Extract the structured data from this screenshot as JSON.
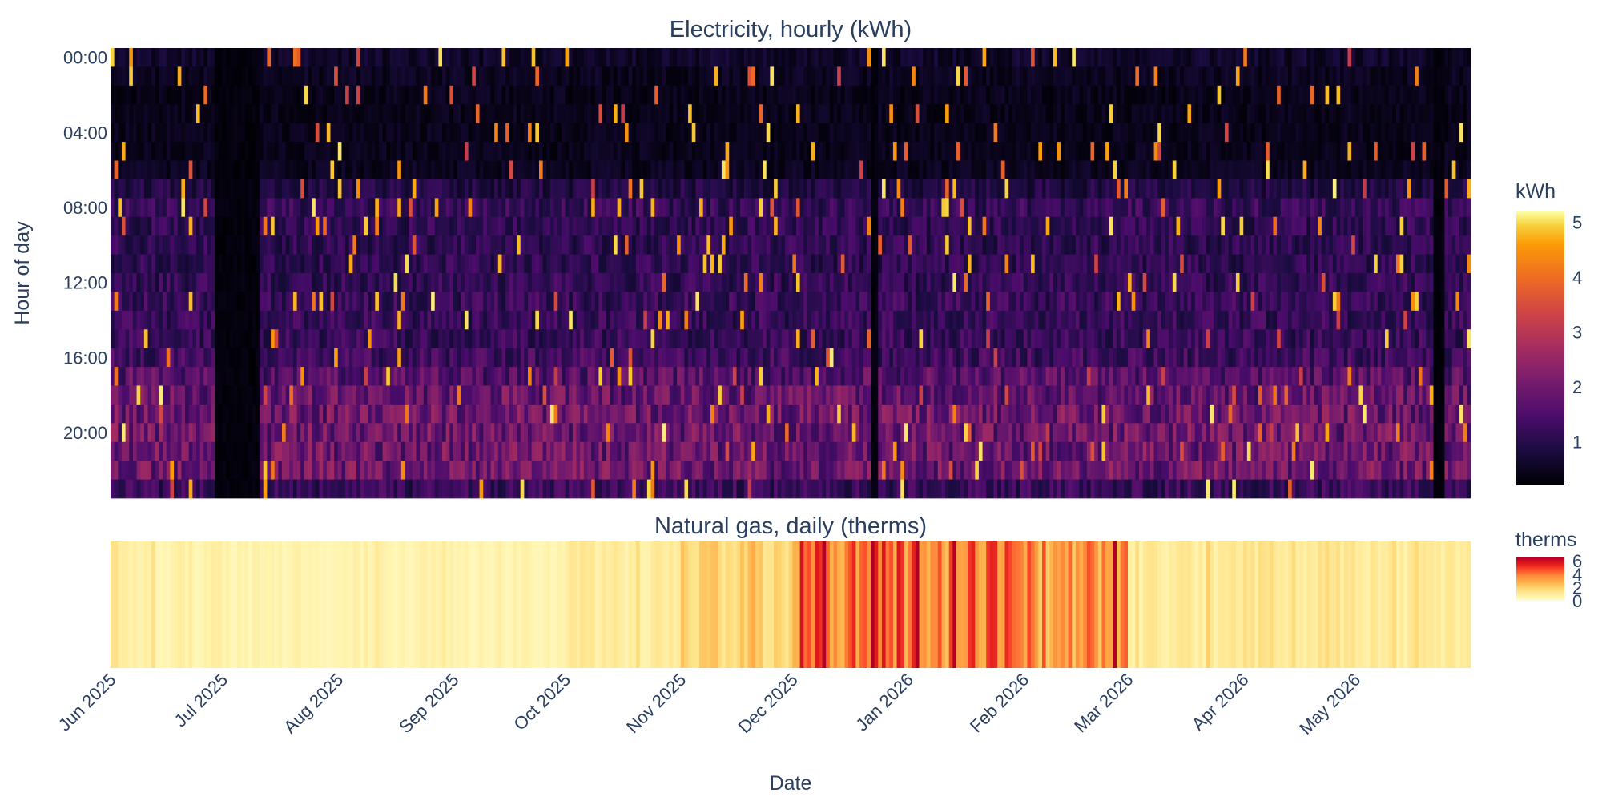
{
  "chart_data": [
    {
      "type": "heatmap",
      "title": "Electricity, hourly (kWh)",
      "ylabel": "Hour of day",
      "xlabel": "",
      "x_range": [
        "2025-06-01",
        "2026-06-01"
      ],
      "y_ticks": [
        "00:00",
        "04:00",
        "08:00",
        "12:00",
        "16:00",
        "20:00"
      ],
      "hours": 24,
      "colorscale": "inferno",
      "colorbar_title": "kWh",
      "colorbar_range": [
        0.2,
        5.2
      ],
      "colorbar_ticks": [
        1,
        2,
        3,
        4,
        5
      ],
      "hour_profile": [
        0.6,
        0.5,
        0.45,
        0.45,
        0.45,
        0.45,
        0.5,
        0.9,
        1.2,
        1.1,
        1.1,
        1.1,
        1.15,
        1.2,
        1.2,
        1.2,
        1.3,
        1.6,
        1.8,
        1.9,
        1.9,
        1.9,
        1.9,
        1.2
      ],
      "low_usage_periods": [
        {
          "start": "2025-06-29",
          "end": "2025-07-11",
          "level": 0.3
        },
        {
          "start": "2025-12-22",
          "end": "2025-12-24",
          "level": 0.3
        },
        {
          "start": "2026-05-22",
          "end": "2026-05-25",
          "level": 0.3
        }
      ]
    },
    {
      "type": "heatmap",
      "title": "Natural gas, daily (therms)",
      "xlabel": "Date",
      "x_range": [
        "2025-06-01",
        "2026-06-01"
      ],
      "colorscale": "YlOrRd",
      "colorbar_title": "therms",
      "colorbar_range": [
        0,
        6.5
      ],
      "colorbar_ticks": [
        0,
        2,
        4,
        6
      ],
      "monthly_mean_therms": [
        {
          "month": "2025-06",
          "value": 0.7
        },
        {
          "month": "2025-07",
          "value": 0.6
        },
        {
          "month": "2025-08",
          "value": 0.6
        },
        {
          "month": "2025-09",
          "value": 0.6
        },
        {
          "month": "2025-10",
          "value": 0.9
        },
        {
          "month": "2025-11",
          "value": 1.8
        },
        {
          "month": "2025-12",
          "value": 4.2
        },
        {
          "month": "2026-01",
          "value": 3.9
        },
        {
          "month": "2026-02",
          "value": 3.4
        },
        {
          "month": "2026-03",
          "value": 1.0
        },
        {
          "month": "2026-04",
          "value": 1.3
        },
        {
          "month": "2026-05",
          "value": 1.0
        }
      ]
    }
  ],
  "x_ticks": [
    {
      "date": "2025-06-01",
      "label": "Jun 2025"
    },
    {
      "date": "2025-07-01",
      "label": "Jul 2025"
    },
    {
      "date": "2025-08-01",
      "label": "Aug 2025"
    },
    {
      "date": "2025-09-01",
      "label": "Sep 2025"
    },
    {
      "date": "2025-10-01",
      "label": "Oct 2025"
    },
    {
      "date": "2025-11-01",
      "label": "Nov 2025"
    },
    {
      "date": "2025-12-01",
      "label": "Dec 2025"
    },
    {
      "date": "2026-01-01",
      "label": "Jan 2026"
    },
    {
      "date": "2026-02-01",
      "label": "Feb 2026"
    },
    {
      "date": "2026-03-01",
      "label": "Mar 2026"
    },
    {
      "date": "2026-04-01",
      "label": "Apr 2026"
    },
    {
      "date": "2026-05-01",
      "label": "May 2026"
    }
  ],
  "colors": {
    "text": "#2a3f5f",
    "background": "#ffffff"
  }
}
